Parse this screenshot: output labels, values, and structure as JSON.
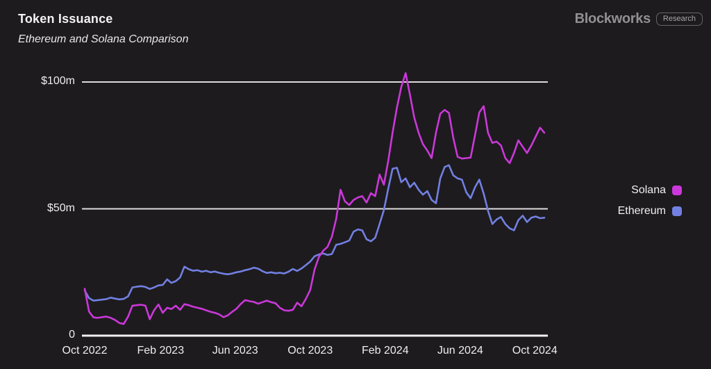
{
  "header": {
    "title": "Token Issuance",
    "subtitle": "Ethereum and Solana Comparison"
  },
  "branding": {
    "name": "Blockworks",
    "badge": "Research"
  },
  "chart_data": {
    "type": "line",
    "title": "Token Issuance",
    "subtitle": "Ethereum and Solana Comparison",
    "unit": "$m (millions of USD)",
    "x_cadence": "weekly",
    "x_tick_labels": [
      "Oct 2022",
      "Feb 2023",
      "Jun 2023",
      "Oct 2023",
      "Feb 2024",
      "Jun 2024",
      "Oct 2024"
    ],
    "x_tick_positions": [
      0,
      17.5,
      34.7,
      52,
      69.3,
      86.6,
      103.8
    ],
    "y_ticks": [
      {
        "label": "$100m",
        "value": 100
      },
      {
        "label": "$50m",
        "value": 50
      },
      {
        "label": "0",
        "value": 0
      }
    ],
    "ylim": [
      0,
      110
    ],
    "grid": "horizontal-only",
    "legend_position": "right",
    "background_color": "#1d1b1e",
    "gridline_color": "#dddbde",
    "series": [
      {
        "name": "Solana",
        "color": "#cb38d9",
        "values": [
          18.5,
          9.5,
          7.2,
          7.0,
          7.3,
          7.5,
          7.0,
          6.2,
          5.0,
          4.6,
          7.5,
          11.8,
          12.0,
          12.2,
          11.8,
          6.5,
          10.0,
          12.3,
          9.0,
          11.0,
          10.5,
          11.8,
          10.2,
          12.4,
          12.0,
          11.4,
          11.0,
          10.6,
          10.0,
          9.4,
          9.0,
          8.4,
          7.3,
          8.0,
          9.4,
          10.6,
          12.5,
          14.0,
          13.6,
          13.3,
          12.6,
          13.2,
          13.8,
          13.2,
          12.8,
          11.0,
          10.0,
          9.8,
          10.2,
          13.0,
          11.6,
          14.5,
          18.0,
          26.0,
          31.0,
          33.5,
          35.0,
          39.0,
          46.0,
          57.5,
          53.0,
          51.5,
          53.5,
          54.5,
          55.0,
          52.5,
          56.2,
          55.0,
          63.5,
          59.5,
          69.0,
          80.0,
          90.0,
          98.0,
          103.5,
          95.0,
          86.0,
          80.0,
          75.5,
          73.0,
          70.0,
          80.0,
          87.5,
          89.0,
          87.8,
          78.0,
          70.5,
          69.8,
          70.0,
          70.2,
          79.0,
          88.0,
          90.5,
          80.0,
          76.0,
          76.5,
          75.0,
          70.0,
          68.0,
          72.0,
          77.0,
          74.5,
          72.0,
          75.0,
          78.5,
          82.0,
          80.0
        ]
      },
      {
        "name": "Ethereum",
        "color": "#7280e2",
        "values": [
          17.8,
          14.8,
          13.8,
          14.0,
          14.2,
          14.4,
          15.0,
          14.6,
          14.3,
          14.5,
          15.5,
          19.0,
          19.3,
          19.5,
          19.2,
          18.4,
          19.0,
          19.8,
          20.0,
          22.2,
          20.8,
          21.5,
          23.0,
          27.2,
          26.2,
          25.6,
          25.8,
          25.2,
          25.6,
          25.0,
          25.3,
          24.8,
          24.4,
          24.2,
          24.5,
          25.0,
          25.3,
          25.8,
          26.2,
          26.8,
          26.4,
          25.4,
          24.7,
          25.0,
          24.6,
          24.8,
          24.5,
          25.2,
          26.3,
          25.5,
          26.5,
          27.8,
          29.2,
          31.3,
          32.0,
          32.4,
          31.8,
          32.2,
          35.8,
          36.2,
          36.8,
          37.5,
          41.0,
          41.9,
          41.5,
          38.0,
          37.2,
          38.6,
          44.0,
          49.5,
          58.0,
          65.8,
          66.2,
          60.5,
          62.0,
          58.5,
          60.3,
          57.5,
          55.6,
          57.0,
          53.5,
          52.2,
          62.0,
          66.5,
          67.2,
          63.2,
          62.0,
          61.5,
          56.5,
          54.2,
          58.5,
          61.5,
          56.0,
          49.3,
          44.0,
          45.8,
          46.8,
          44.0,
          42.3,
          41.5,
          45.5,
          47.3,
          44.8,
          46.5,
          47.0,
          46.3,
          46.5
        ]
      }
    ]
  }
}
